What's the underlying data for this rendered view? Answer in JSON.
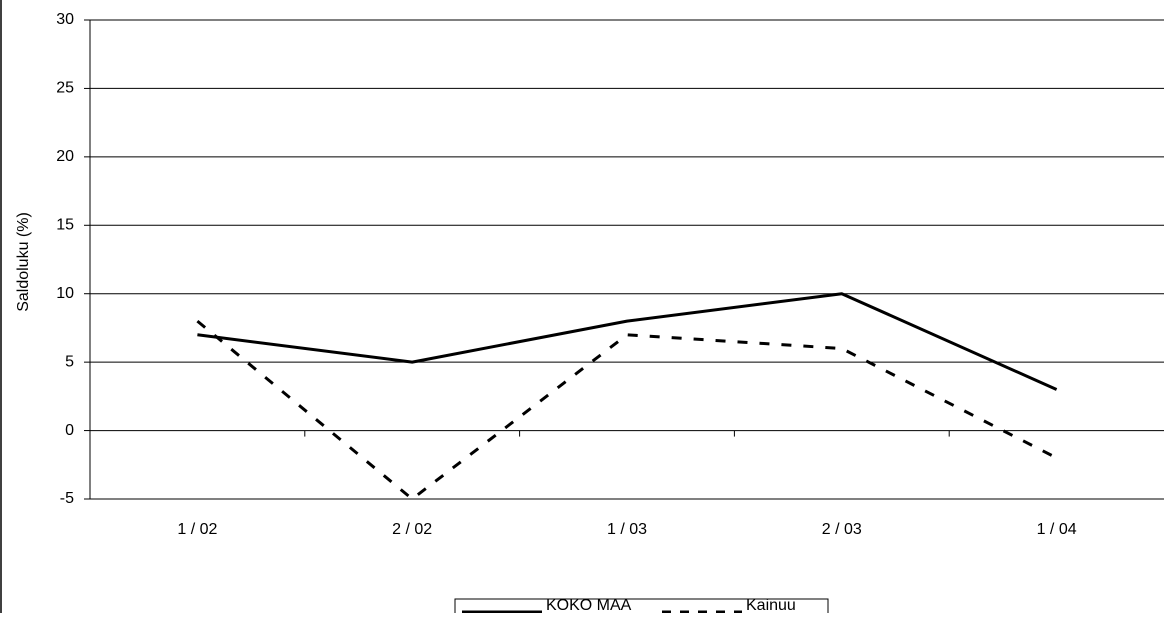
{
  "chart_data": {
    "type": "line",
    "title": "",
    "xlabel": "",
    "ylabel": "Saldoluku (%)",
    "categories": [
      "1 / 02",
      "2 / 02",
      "1 / 03",
      "2 / 03",
      "1 / 04"
    ],
    "ylim": [
      -5,
      30
    ],
    "yticks": [
      30,
      25,
      20,
      15,
      10,
      5,
      0,
      -5
    ],
    "grid": true,
    "legend_position": "bottom",
    "series": [
      {
        "name": "KOKO MAA",
        "style": "solid",
        "color": "#000000",
        "values": [
          7,
          5,
          8,
          10,
          3
        ]
      },
      {
        "name": "Kainuu",
        "style": "dashed",
        "color": "#000000",
        "values": [
          8,
          -5,
          7,
          6,
          -2
        ]
      }
    ]
  }
}
